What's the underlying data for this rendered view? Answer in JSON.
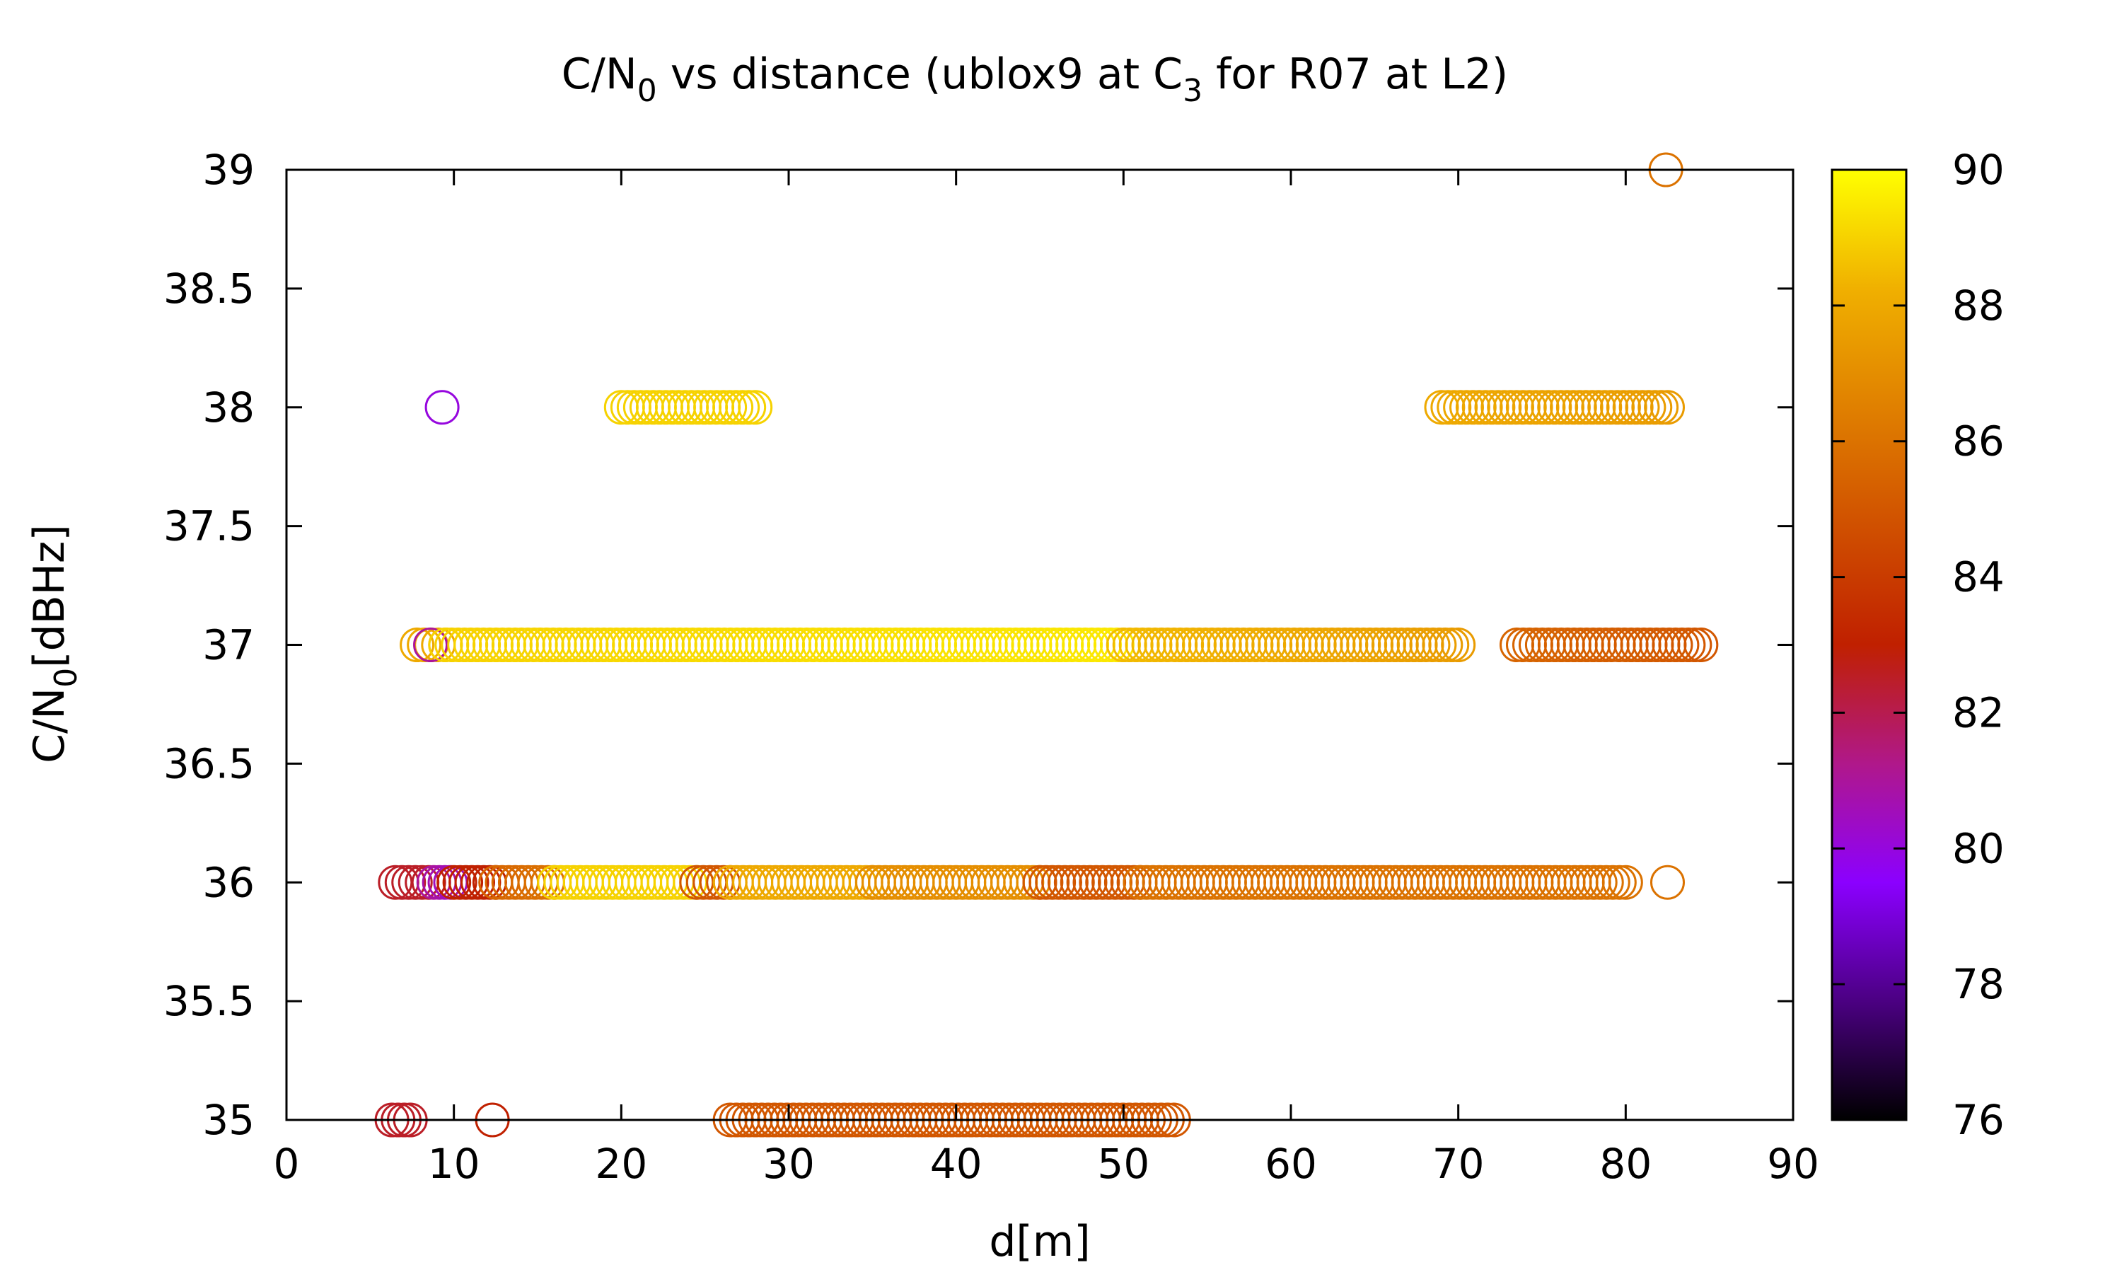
{
  "chart_data": {
    "type": "scatter",
    "title_parts": [
      "C/N",
      "0",
      " vs distance (ublox9 at C",
      "3",
      " for R07 at L2)"
    ],
    "xlabel": "d[m]",
    "ylabel_parts": [
      "C/N",
      "0",
      "[dBHz]"
    ],
    "xlim": [
      0,
      90
    ],
    "ylim": [
      35,
      39
    ],
    "xticks": [
      "0",
      "10",
      "20",
      "30",
      "40",
      "50",
      "60",
      "70",
      "80",
      "90"
    ],
    "yticks": [
      "35",
      "35.5",
      "36",
      "36.5",
      "37",
      "37.5",
      "38",
      "38.5",
      "39"
    ],
    "colorbar": {
      "range": [
        76,
        90
      ],
      "ticks": [
        "76",
        "78",
        "80",
        "82",
        "84",
        "86",
        "88",
        "90"
      ],
      "palette": [
        "#000000",
        "#4b0082",
        "#8b00ff",
        "#b0188a",
        "#c02000",
        "#d05000",
        "#e08000",
        "#f0b000",
        "#ffff00"
      ]
    },
    "marker": "open-circle",
    "segments": [
      {
        "y": 39,
        "x": [
          82.4
        ],
        "c": [
          86
        ]
      },
      {
        "y": 38,
        "x": [
          9.3
        ],
        "c": [
          80
        ]
      },
      {
        "y": 38,
        "x": [
          20.0,
          28.0
        ],
        "c": [
          89,
          89
        ]
      },
      {
        "y": 38,
        "x": [
          69.0,
          82.5
        ],
        "c": [
          88,
          87.5
        ]
      },
      {
        "y": 37,
        "x": [
          7.8,
          9.5
        ],
        "c": [
          88,
          88
        ]
      },
      {
        "y": 37,
        "x": [
          8.6
        ],
        "c": [
          81
        ]
      },
      {
        "y": 37,
        "x": [
          9.5,
          50.0
        ],
        "c": [
          89,
          89.5
        ]
      },
      {
        "y": 37,
        "x": [
          50.0,
          70.0
        ],
        "c": [
          88.5,
          87.5
        ]
      },
      {
        "y": 37,
        "x": [
          73.5,
          84.5
        ],
        "c": [
          85.5,
          85
        ]
      },
      {
        "y": 36,
        "x": [
          6.5,
          8.5
        ],
        "c": [
          82.5,
          82.5
        ]
      },
      {
        "y": 36,
        "x": [
          8.8,
          9.8
        ],
        "c": [
          81,
          80.5
        ]
      },
      {
        "y": 36,
        "x": [
          10.0,
          12.5
        ],
        "c": [
          83,
          83
        ]
      },
      {
        "y": 36,
        "x": [
          12.5,
          16.0
        ],
        "c": [
          85.5,
          86
        ]
      },
      {
        "y": 36,
        "x": [
          16.0,
          24.5
        ],
        "c": [
          89,
          89
        ]
      },
      {
        "y": 36,
        "x": [
          24.5,
          26.5
        ],
        "c": [
          85,
          85
        ]
      },
      {
        "y": 36,
        "x": [
          26.5,
          35.0
        ],
        "c": [
          88,
          88
        ]
      },
      {
        "y": 36,
        "x": [
          35.0,
          45.0
        ],
        "c": [
          87,
          87
        ]
      },
      {
        "y": 36,
        "x": [
          45.0,
          51.0
        ],
        "c": [
          85,
          85
        ]
      },
      {
        "y": 36,
        "x": [
          51.0,
          80.0
        ],
        "c": [
          86,
          86
        ]
      },
      {
        "y": 36,
        "x": [
          82.5
        ],
        "c": [
          86
        ]
      },
      {
        "y": 35,
        "x": [
          6.3,
          7.4
        ],
        "c": [
          82.5,
          82.5
        ]
      },
      {
        "y": 35,
        "x": [
          12.3
        ],
        "c": [
          83
        ]
      },
      {
        "y": 35,
        "x": [
          26.5,
          53.0
        ],
        "c": [
          85,
          85
        ]
      }
    ]
  }
}
